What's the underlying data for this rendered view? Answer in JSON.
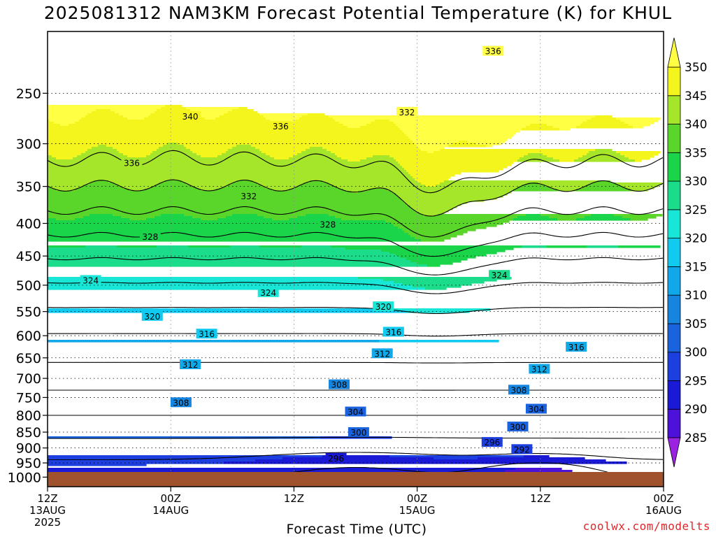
{
  "title": "2025081312 NAM3KM Forecast Potential Temperature (K) for KHUL",
  "credit": "coolwx.com/modelts",
  "chart_data": {
    "type": "contour",
    "title": "2025081312 NAM3KM Forecast Potential Temperature (K) for KHUL",
    "xlabel": "Forecast Time (UTC)",
    "ylabel": "",
    "xlim": [
      0,
      60
    ],
    "ylim": [
      1035,
      200
    ],
    "y_scale": "log",
    "grid": true,
    "x_ticks": [
      {
        "x": 0,
        "label": [
          "12Z",
          "13AUG",
          "2025"
        ]
      },
      {
        "x": 12,
        "label": [
          "00Z",
          "14AUG"
        ]
      },
      {
        "x": 24,
        "label": [
          "12Z"
        ]
      },
      {
        "x": 36,
        "label": [
          "00Z",
          "15AUG"
        ]
      },
      {
        "x": 48,
        "label": [
          "12Z"
        ]
      },
      {
        "x": 60,
        "label": [
          "00Z",
          "16AUG"
        ]
      }
    ],
    "y_ticks": [
      250,
      300,
      350,
      400,
      450,
      500,
      550,
      600,
      650,
      700,
      750,
      800,
      850,
      900,
      950,
      1000
    ],
    "colorbar": {
      "levels": [
        285,
        290,
        295,
        300,
        305,
        310,
        315,
        320,
        325,
        330,
        335,
        340,
        345,
        350
      ],
      "colors": [
        "#9a22e0",
        "#4c12d9",
        "#1a1ad6",
        "#1e3fe0",
        "#1a63df",
        "#1585e0",
        "#10a8e8",
        "#10caf0",
        "#18e6d6",
        "#1adc8a",
        "#1ad44a",
        "#5ad62a",
        "#a6e62a",
        "#f4f51c",
        "#ffff44"
      ]
    },
    "ground_color": "#a0522d",
    "contour_labels": [
      {
        "value": "336",
        "x": 43.4,
        "p": 215
      },
      {
        "value": "340",
        "x": 13.9,
        "p": 272
      },
      {
        "value": "336",
        "x": 22.7,
        "p": 282
      },
      {
        "value": "332",
        "x": 35.0,
        "p": 268
      },
      {
        "value": "336",
        "x": 8.2,
        "p": 322
      },
      {
        "value": "332",
        "x": 19.6,
        "p": 363
      },
      {
        "value": "328",
        "x": 10.0,
        "p": 420
      },
      {
        "value": "328",
        "x": 27.3,
        "p": 402
      },
      {
        "value": "324",
        "x": 4.2,
        "p": 492
      },
      {
        "value": "324",
        "x": 21.5,
        "p": 514
      },
      {
        "value": "324",
        "x": 44.0,
        "p": 483
      },
      {
        "value": "320",
        "x": 10.2,
        "p": 560
      },
      {
        "value": "320",
        "x": 32.7,
        "p": 541
      },
      {
        "value": "316",
        "x": 15.5,
        "p": 597
      },
      {
        "value": "316",
        "x": 33.7,
        "p": 593
      },
      {
        "value": "316",
        "x": 51.5,
        "p": 626
      },
      {
        "value": "312",
        "x": 13.9,
        "p": 667
      },
      {
        "value": "312",
        "x": 32.6,
        "p": 641
      },
      {
        "value": "312",
        "x": 47.9,
        "p": 678
      },
      {
        "value": "308",
        "x": 13.0,
        "p": 765
      },
      {
        "value": "308",
        "x": 28.4,
        "p": 717
      },
      {
        "value": "308",
        "x": 45.9,
        "p": 731
      },
      {
        "value": "304",
        "x": 30.0,
        "p": 791
      },
      {
        "value": "304",
        "x": 47.6,
        "p": 783
      },
      {
        "value": "300",
        "x": 30.3,
        "p": 852
      },
      {
        "value": "300",
        "x": 45.8,
        "p": 835
      },
      {
        "value": "296",
        "x": 28.1,
        "p": 935
      },
      {
        "value": "296",
        "x": 43.3,
        "p": 883
      },
      {
        "value": "292",
        "x": 46.2,
        "p": 906
      }
    ]
  }
}
